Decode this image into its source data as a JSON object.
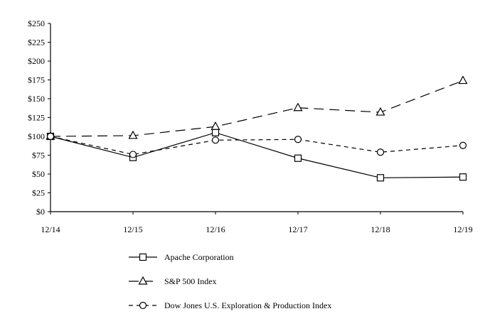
{
  "chart_data": {
    "type": "line",
    "title": "",
    "xlabel": "",
    "ylabel": "",
    "categories": [
      "12/14",
      "12/15",
      "12/16",
      "12/17",
      "12/18",
      "12/19"
    ],
    "y_ticks": [
      "$0",
      "$25",
      "$50",
      "$75",
      "$100",
      "$125",
      "$150",
      "$175",
      "$200",
      "$225",
      "$250"
    ],
    "ylim": [
      0,
      250
    ],
    "grid": false,
    "legend_position": "bottom",
    "series": [
      {
        "name": "Apache Corporation",
        "values": [
          100,
          72,
          105,
          71,
          45,
          46
        ],
        "marker": "square",
        "line_style": "solid",
        "color": "#000000"
      },
      {
        "name": "S&P 500 Index",
        "values": [
          100,
          101,
          113,
          138,
          132,
          174
        ],
        "marker": "triangle",
        "line_style": "long-dash",
        "color": "#000000"
      },
      {
        "name": "Dow Jones U.S. Exploration & Production Index",
        "values": [
          100,
          76,
          95,
          96,
          79,
          88
        ],
        "marker": "circle",
        "line_style": "short-dash",
        "color": "#000000"
      }
    ]
  }
}
